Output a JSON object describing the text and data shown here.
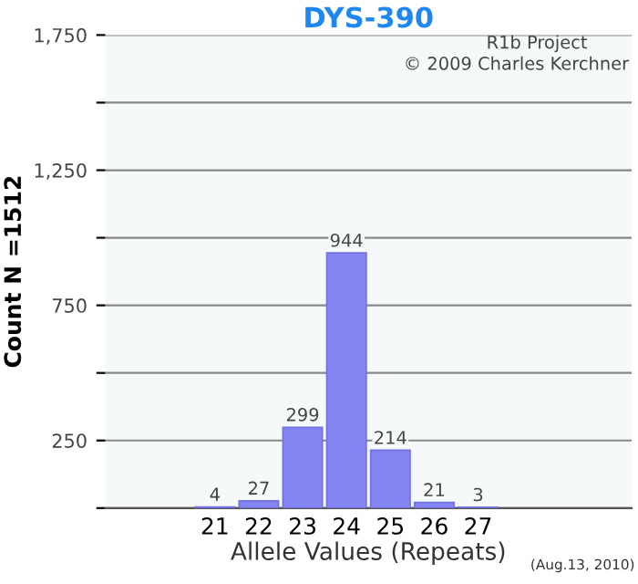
{
  "chart_data": {
    "type": "bar",
    "title": "DYS-390",
    "xlabel": "Allele Values (Repeats)",
    "ylabel": "Count N =1512",
    "categories": [
      null,
      null,
      "21",
      "22",
      "23",
      "24",
      "25",
      "26",
      "27",
      null,
      null,
      null
    ],
    "values": [
      null,
      null,
      4,
      27,
      299,
      944,
      214,
      21,
      3,
      null,
      null,
      null
    ],
    "color": "#8484f2",
    "data_labels": true,
    "ylim": [
      0,
      1750
    ],
    "yticks": [
      {
        "value": 0,
        "label": null
      },
      250,
      {
        "value": 500,
        "label": null
      },
      750,
      {
        "value": 1000,
        "label": null
      },
      {
        "value": 1250,
        "label": "1,250"
      },
      {
        "value": 1500,
        "label": null
      },
      {
        "value": 1750,
        "label": "1,750"
      }
    ],
    "grid": "y",
    "annotations": [
      "R1b Project",
      "© 2009 Charles Kerchner",
      "(Aug.13, 2010)"
    ]
  }
}
